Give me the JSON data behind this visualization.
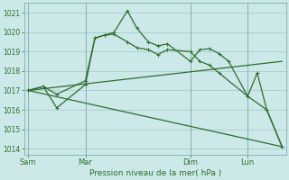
{
  "bg_color": "#cce8e8",
  "grid_color": "#aacccc",
  "line_color": "#2d6e2d",
  "title": "Pression niveau de la mer( hPa )",
  "yticks": [
    1014,
    1015,
    1016,
    1017,
    1018,
    1019,
    1020,
    1021
  ],
  "ylim": [
    1013.7,
    1021.5
  ],
  "xlim": [
    -0.2,
    13.5
  ],
  "xtick_labels": [
    "Sam",
    "Mar",
    "Dim",
    "Lun"
  ],
  "xtick_positions": [
    0.0,
    3.0,
    8.5,
    11.5
  ],
  "vline_positions": [
    0.0,
    3.0,
    8.5,
    11.5
  ],
  "line1_x": [
    0,
    0.8,
    1.5,
    3.0,
    3.5,
    4.0,
    4.5,
    5.2,
    5.7,
    6.3,
    6.8,
    7.3,
    8.5,
    9.0,
    9.5,
    10.0,
    10.5,
    11.5,
    12.0,
    12.5,
    13.3
  ],
  "line1_y": [
    1017,
    1017.2,
    1016.1,
    1017.3,
    1019.7,
    1019.85,
    1020.0,
    1021.1,
    1020.2,
    1019.5,
    1019.3,
    1019.4,
    1018.5,
    1019.1,
    1019.15,
    1018.9,
    1018.5,
    1016.7,
    1017.9,
    1016.0,
    1014.1
  ],
  "line2_x": [
    0,
    0.8,
    1.5,
    3.0,
    3.5,
    4.0,
    4.5,
    5.2,
    5.7,
    6.3,
    6.8,
    7.3,
    8.5,
    9.0,
    9.5,
    10.0,
    11.5,
    12.5,
    13.3
  ],
  "line2_y": [
    1017,
    1017.2,
    1016.8,
    1017.5,
    1019.7,
    1019.85,
    1019.9,
    1019.5,
    1019.2,
    1019.1,
    1018.85,
    1019.1,
    1019.0,
    1018.5,
    1018.3,
    1017.9,
    1016.7,
    1016.0,
    1014.1
  ],
  "line3_x": [
    0,
    13.3
  ],
  "line3_y": [
    1017,
    1018.5
  ],
  "line4_x": [
    0,
    13.3
  ],
  "line4_y": [
    1017,
    1014.1
  ]
}
